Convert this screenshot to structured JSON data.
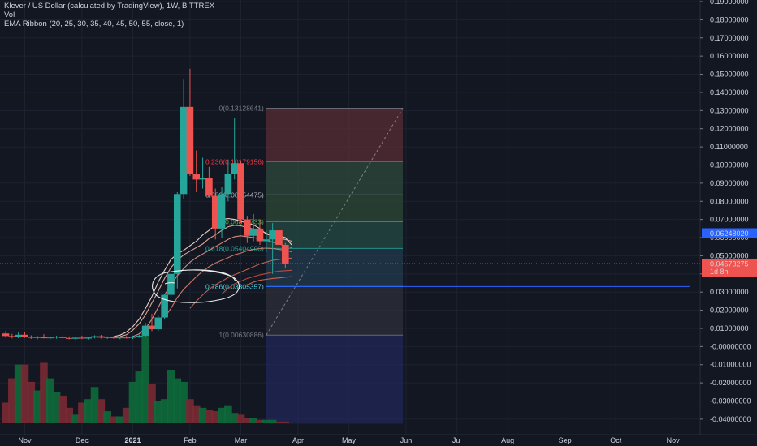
{
  "header": {
    "title": "Klever / US Dollar (calculated by TradingView), 1W, BITTREX",
    "vol_label": "Vol",
    "indicator": "EMA Ribbon (20, 25, 30, 35, 40, 45, 50, 55, close, 1)"
  },
  "price_axis": {
    "ticks": [
      "0.19000000",
      "0.18000000",
      "0.17000000",
      "0.16000000",
      "0.15000000",
      "0.14000000",
      "0.13000000",
      "0.12000000",
      "0.11000000",
      "0.10000000",
      "0.09000000",
      "0.08000000",
      "0.07000000",
      "0.06000000",
      "0.05000000",
      "0.04000000",
      "0.03000000",
      "0.02000000",
      "0.01000000",
      "-0.00000000",
      "-0.01000000",
      "-0.02000000",
      "-0.03000000",
      "-0.04000000"
    ],
    "tick_values": [
      0.19,
      0.18,
      0.17,
      0.16,
      0.15,
      0.14,
      0.13,
      0.12,
      0.11,
      0.1,
      0.09,
      0.08,
      0.07,
      0.06,
      0.05,
      0.04,
      0.03,
      0.02,
      0.01,
      0,
      -0.01,
      -0.02,
      -0.03,
      -0.04
    ],
    "badge_ema": {
      "value": 0.0624802,
      "label": "0.06248020",
      "color": "#2962ff"
    },
    "badge_last": {
      "value": 0.04573275,
      "label": "0.04573275",
      "sub_label": "1d 8h",
      "color": "#ef5350"
    }
  },
  "time_axis": {
    "labels": [
      "Nov",
      "Dec",
      "2021",
      "Feb",
      "Mar",
      "Apr",
      "May",
      "Jun",
      "Jul",
      "Aug",
      "Sep",
      "Oct",
      "Nov"
    ],
    "label_weeks": [
      3,
      12,
      20,
      29,
      37,
      46,
      54,
      63,
      71,
      79,
      88,
      96,
      105
    ]
  },
  "fib": {
    "levels": [
      {
        "ratio": 0,
        "label": "0(0.13128641)",
        "value": 0.13128641,
        "color": "#787b86"
      },
      {
        "ratio": 0.236,
        "label": "0.236(0.10179156)",
        "value": 0.10179156,
        "color": "#f23645"
      },
      {
        "ratio": 0.382,
        "label": "0.382(0.08354475)",
        "value": 0.08354475,
        "color": "#b2b5be"
      },
      {
        "ratio": 0.5,
        "label": "0.5(0.06879733)",
        "value": 0.06879733,
        "color": "#4caf50"
      },
      {
        "ratio": 0.618,
        "label": "0.618(0.05404990)",
        "value": 0.0540499,
        "color": "#26a69a"
      },
      {
        "ratio": 0.786,
        "label": "0.786(0.03305357)",
        "value": 0.03305357,
        "color": "#4dd0e1"
      },
      {
        "ratio": 1,
        "label": "1(0.00630886)",
        "value": 0.00630886,
        "color": "#787b86"
      }
    ],
    "zone_colors": [
      "#5a2d34",
      "#2f4a3c",
      "#2d4a37",
      "#244b44",
      "#233b4f",
      "#2d303a",
      "#21275a"
    ],
    "bottom_value": -0.0425,
    "start_week": 41,
    "end_week": 62.5
  },
  "horizontal_line": {
    "value": 0.03305357,
    "color": "#2962ff"
  },
  "chart_data": {
    "type": "candlestick",
    "symbol": "Klever / US Dollar (calculated by TradingView)",
    "interval": "1W",
    "exchange": "BITTREX",
    "ylim": [
      -0.0425,
      0.19
    ],
    "candles": [
      {
        "w": 0,
        "o": 0.0072,
        "h": 0.0085,
        "l": 0.005,
        "c": 0.0058,
        "v": 0.12
      },
      {
        "w": 1,
        "o": 0.0058,
        "h": 0.007,
        "l": 0.0045,
        "c": 0.0052,
        "v": 0.26
      },
      {
        "w": 2,
        "o": 0.0052,
        "h": 0.008,
        "l": 0.0046,
        "c": 0.0065,
        "v": 0.34
      },
      {
        "w": 3,
        "o": 0.0065,
        "h": 0.0082,
        "l": 0.0048,
        "c": 0.0055,
        "v": 0.34
      },
      {
        "w": 4,
        "o": 0.0055,
        "h": 0.0062,
        "l": 0.0042,
        "c": 0.0048,
        "v": 0.24
      },
      {
        "w": 5,
        "o": 0.0048,
        "h": 0.0058,
        "l": 0.004,
        "c": 0.0052,
        "v": 0.19
      },
      {
        "w": 6,
        "o": 0.0052,
        "h": 0.0068,
        "l": 0.0044,
        "c": 0.0046,
        "v": 0.35
      },
      {
        "w": 7,
        "o": 0.0046,
        "h": 0.0056,
        "l": 0.004,
        "c": 0.005,
        "v": 0.26
      },
      {
        "w": 8,
        "o": 0.005,
        "h": 0.006,
        "l": 0.0043,
        "c": 0.0054,
        "v": 0.18
      },
      {
        "w": 9,
        "o": 0.0054,
        "h": 0.0062,
        "l": 0.0044,
        "c": 0.0047,
        "v": 0.16
      },
      {
        "w": 10,
        "o": 0.0047,
        "h": 0.0056,
        "l": 0.004,
        "c": 0.0043,
        "v": 0.09
      },
      {
        "w": 11,
        "o": 0.0043,
        "h": 0.0052,
        "l": 0.0038,
        "c": 0.0049,
        "v": 0.05
      },
      {
        "w": 12,
        "o": 0.0049,
        "h": 0.006,
        "l": 0.0041,
        "c": 0.0044,
        "v": 0.12
      },
      {
        "w": 13,
        "o": 0.0044,
        "h": 0.0054,
        "l": 0.0038,
        "c": 0.005,
        "v": 0.14
      },
      {
        "w": 14,
        "o": 0.005,
        "h": 0.0062,
        "l": 0.0045,
        "c": 0.0057,
        "v": 0.21
      },
      {
        "w": 15,
        "o": 0.0057,
        "h": 0.0064,
        "l": 0.0044,
        "c": 0.0049,
        "v": 0.14
      },
      {
        "w": 16,
        "o": 0.0049,
        "h": 0.0056,
        "l": 0.0042,
        "c": 0.0052,
        "v": 0.07
      },
      {
        "w": 17,
        "o": 0.0052,
        "h": 0.0058,
        "l": 0.0043,
        "c": 0.0046,
        "v": 0.04
      },
      {
        "w": 18,
        "o": 0.0046,
        "h": 0.0054,
        "l": 0.004,
        "c": 0.005,
        "v": 0.04
      },
      {
        "w": 19,
        "o": 0.005,
        "h": 0.0058,
        "l": 0.0044,
        "c": 0.0048,
        "v": 0.09
      },
      {
        "w": 20,
        "o": 0.0048,
        "h": 0.006,
        "l": 0.0042,
        "c": 0.0054,
        "v": 0.24
      },
      {
        "w": 21,
        "o": 0.0054,
        "h": 0.0066,
        "l": 0.0048,
        "c": 0.006,
        "v": 0.3
      },
      {
        "w": 22,
        "o": 0.006,
        "h": 0.013,
        "l": 0.0052,
        "c": 0.0115,
        "v": 0.54
      },
      {
        "w": 23,
        "o": 0.0115,
        "h": 0.018,
        "l": 0.0085,
        "c": 0.0095,
        "v": 0.23
      },
      {
        "w": 24,
        "o": 0.0095,
        "h": 0.017,
        "l": 0.0085,
        "c": 0.016,
        "v": 0.13
      },
      {
        "w": 25,
        "o": 0.016,
        "h": 0.029,
        "l": 0.015,
        "c": 0.0285,
        "v": 0.14
      },
      {
        "w": 26,
        "o": 0.0285,
        "h": 0.041,
        "l": 0.027,
        "c": 0.04,
        "v": 0.31
      },
      {
        "w": 27,
        "o": 0.04,
        "h": 0.085,
        "l": 0.032,
        "c": 0.084,
        "v": 0.26
      },
      {
        "w": 28,
        "o": 0.084,
        "h": 0.147,
        "l": 0.081,
        "c": 0.132,
        "v": 0.24
      },
      {
        "w": 29,
        "o": 0.132,
        "h": 0.153,
        "l": 0.094,
        "c": 0.095,
        "v": 0.14
      },
      {
        "w": 30,
        "o": 0.095,
        "h": 0.108,
        "l": 0.085,
        "c": 0.092,
        "v": 0.1
      },
      {
        "w": 31,
        "o": 0.092,
        "h": 0.104,
        "l": 0.087,
        "c": 0.093,
        "v": 0.09
      },
      {
        "w": 32,
        "o": 0.093,
        "h": 0.099,
        "l": 0.082,
        "c": 0.083,
        "v": 0.08
      },
      {
        "w": 33,
        "o": 0.083,
        "h": 0.087,
        "l": 0.059,
        "c": 0.065,
        "v": 0.07
      },
      {
        "w": 34,
        "o": 0.065,
        "h": 0.088,
        "l": 0.06,
        "c": 0.084,
        "v": 0.09
      },
      {
        "w": 35,
        "o": 0.084,
        "h": 0.103,
        "l": 0.08,
        "c": 0.095,
        "v": 0.1
      },
      {
        "w": 36,
        "o": 0.095,
        "h": 0.126,
        "l": 0.092,
        "c": 0.101,
        "v": 0.06
      },
      {
        "w": 37,
        "o": 0.101,
        "h": 0.102,
        "l": 0.068,
        "c": 0.07,
        "v": 0.05
      },
      {
        "w": 38,
        "o": 0.07,
        "h": 0.072,
        "l": 0.057,
        "c": 0.061,
        "v": 0.03
      },
      {
        "w": 39,
        "o": 0.061,
        "h": 0.073,
        "l": 0.058,
        "c": 0.065,
        "v": 0.03
      },
      {
        "w": 40,
        "o": 0.065,
        "h": 0.07,
        "l": 0.056,
        "c": 0.058,
        "v": 0.02
      },
      {
        "w": 41,
        "o": 0.058,
        "h": 0.064,
        "l": 0.052,
        "c": 0.059,
        "v": 0.02
      },
      {
        "w": 42,
        "o": 0.059,
        "h": 0.068,
        "l": 0.04,
        "c": 0.064,
        "v": 0.02
      },
      {
        "w": 43,
        "o": 0.064,
        "h": 0.07,
        "l": 0.054,
        "c": 0.056,
        "v": 0.01
      },
      {
        "w": 44,
        "o": 0.056,
        "h": 0.057,
        "l": 0.043,
        "c": 0.0457,
        "v": 0.01
      }
    ],
    "ema_ribbon": [
      {
        "start_week": 17,
        "points": [
          0.0055,
          0.0063,
          0.008,
          0.011,
          0.015,
          0.021,
          0.0275,
          0.0355,
          0.042,
          0.048,
          0.051,
          0.053,
          0.0555,
          0.058,
          0.0615,
          0.064,
          0.067,
          0.07,
          0.0705,
          0.07,
          0.069,
          0.068,
          0.067,
          0.065,
          0.062,
          0.061,
          0.061,
          0.06,
          0.056
        ],
        "color": "#ffe0d6"
      },
      {
        "start_week": 18,
        "points": [
          0.0055,
          0.0065,
          0.009,
          0.0125,
          0.0175,
          0.024,
          0.0305,
          0.0375,
          0.0435,
          0.0475,
          0.0505,
          0.0525,
          0.0545,
          0.0565,
          0.0595,
          0.0615,
          0.064,
          0.066,
          0.0668,
          0.0665,
          0.0655,
          0.0647,
          0.0638,
          0.0625,
          0.0607,
          0.0595,
          0.059,
          0.058
        ],
        "color": "#f3b6a5"
      },
      {
        "start_week": 20,
        "points": [
          0.0055,
          0.007,
          0.01,
          0.015,
          0.0215,
          0.0285,
          0.034,
          0.039,
          0.043,
          0.0465,
          0.049,
          0.051,
          0.053,
          0.055,
          0.057,
          0.059,
          0.0605,
          0.061,
          0.0605,
          0.06,
          0.0592,
          0.0585,
          0.0575,
          0.0565,
          0.0555,
          0.0545
        ],
        "color": "#e9998a"
      },
      {
        "start_week": 25,
        "points": [
          0.016,
          0.021,
          0.027,
          0.0315,
          0.035,
          0.0385,
          0.0415,
          0.044,
          0.046,
          0.0475,
          0.049,
          0.0505,
          0.0515,
          0.0528,
          0.0535,
          0.054,
          0.0542,
          0.054,
          0.0535,
          0.053,
          0.0522
        ],
        "color": "#de8070"
      },
      {
        "start_week": 29,
        "points": [
          0.021,
          0.025,
          0.0285,
          0.0315,
          0.034,
          0.036,
          0.038,
          0.0395,
          0.041,
          0.0425,
          0.044,
          0.0455,
          0.0465,
          0.0475,
          0.048,
          0.0485,
          0.0487
        ],
        "color": "#d26654"
      },
      {
        "start_week": 34,
        "points": [
          0.029,
          0.032,
          0.0345,
          0.036,
          0.0375,
          0.0385,
          0.0395,
          0.0402,
          0.041,
          0.0415,
          0.0418,
          0.042
        ],
        "color": "#c85040"
      },
      {
        "start_week": 38,
        "points": [
          0.034,
          0.0355,
          0.0365,
          0.037,
          0.0375,
          0.0378,
          0.0382,
          0.0385
        ],
        "color": "#e06a4f"
      }
    ]
  },
  "annotation": {
    "type": "freehand-circle",
    "around": "0.786 level",
    "color": "#ffffff"
  }
}
